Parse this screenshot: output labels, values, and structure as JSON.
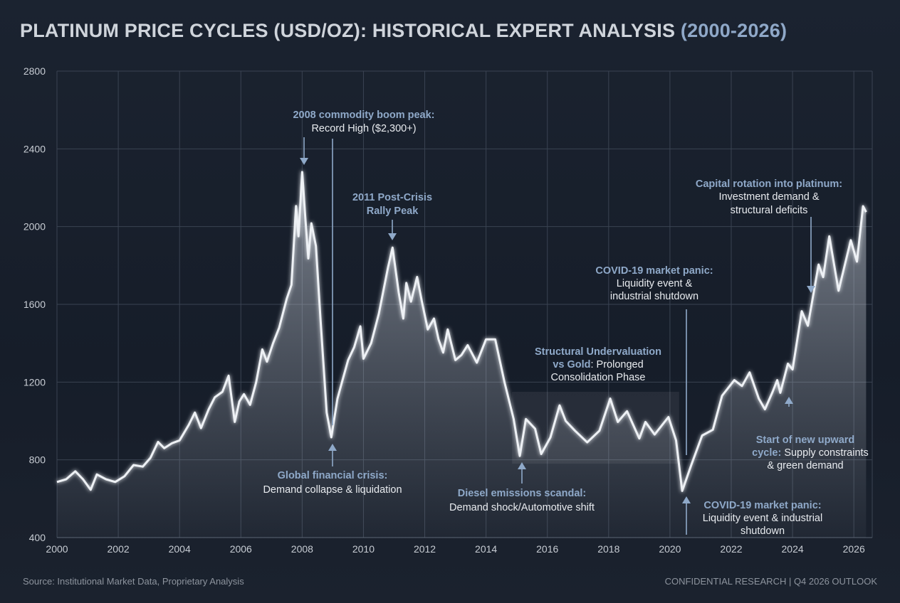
{
  "title": {
    "main": "PLATINUM PRICE CYCLES (USD/OZ): HISTORICAL EXPERT ANALYSIS ",
    "range": "(2000-2026)"
  },
  "footer": {
    "source": "Source: Institutional Market Data, Proprietary Analysis",
    "right": "CONFIDENTIAL RESEARCH | Q4 2026 OUTLOOK"
  },
  "colors": {
    "line": "#eef1f5",
    "accent": "#8fa9c9",
    "grid": "#3a4352",
    "background": "#1a2230"
  },
  "annotations": {
    "peak2008": {
      "title": "2008 commodity boom peak:",
      "text": "Record High ($2,300+)"
    },
    "peak2011": {
      "line1": "2011 Post-Crisis",
      "line2": "Rally Peak"
    },
    "gfc": {
      "title": "Global financial crisis:",
      "text": "Demand collapse & liquidation"
    },
    "diesel": {
      "title": "Diesel emissions scandal:",
      "text": "Demand shock/Automotive shift"
    },
    "structural": {
      "line1": "Structural Undervaluation",
      "line2_bold": "vs Gold",
      "line2_rest": ": Prolonged",
      "line3": "Consolidation Phase"
    },
    "covid_upper": {
      "title": "COVID-19 market panic:",
      "line1": "Liquidity event &",
      "line2": "industrial shutdown"
    },
    "covid_lower": {
      "title": "COVID-19 market panic:",
      "line1": "Liquidity event & industrial",
      "line2": "shutdown"
    },
    "upward": {
      "line1": "Start of new upward",
      "line2_bold": "cycle:",
      "line2_rest": " Supply constraints",
      "line3": "& green demand"
    },
    "capital": {
      "title": "Capital rotation into platinum:",
      "line1": "Investment demand &",
      "line2": "structural deficits"
    }
  },
  "chart_data": {
    "type": "area",
    "title": "PLATINUM PRICE CYCLES (USD/OZ): HISTORICAL EXPERT ANALYSIS (2000-2026)",
    "xlabel": "",
    "ylabel": "USD/oz",
    "xlim": [
      2000,
      2026.6
    ],
    "ylim": [
      400,
      2800
    ],
    "x_ticks": [
      "2000",
      "2002",
      "2004",
      "2006",
      "2008",
      "2010",
      "2012",
      "2014",
      "2016",
      "2018",
      "2020",
      "2022",
      "2024",
      "2026"
    ],
    "y_ticks": [
      "400",
      "800",
      "1200",
      "1600",
      "2000",
      "2400",
      "2800"
    ],
    "grid": true,
    "consolidation_band": {
      "x": [
        2014.85,
        2020.3
      ],
      "y": [
        780,
        1150
      ]
    },
    "series": [
      {
        "name": "Platinum price",
        "points": [
          [
            2000,
            686
          ],
          [
            2000.3,
            700
          ],
          [
            2000.6,
            741
          ],
          [
            2000.85,
            700
          ],
          [
            2001.1,
            646
          ],
          [
            2001.3,
            725
          ],
          [
            2001.6,
            700
          ],
          [
            2001.9,
            686
          ],
          [
            2002.2,
            715
          ],
          [
            2002.5,
            773
          ],
          [
            2002.8,
            765
          ],
          [
            2003.05,
            810
          ],
          [
            2003.3,
            892
          ],
          [
            2003.5,
            860
          ],
          [
            2003.75,
            885
          ],
          [
            2004.0,
            900
          ],
          [
            2004.3,
            980
          ],
          [
            2004.5,
            1043
          ],
          [
            2004.7,
            963
          ],
          [
            2004.95,
            1060
          ],
          [
            2005.15,
            1122
          ],
          [
            2005.4,
            1150
          ],
          [
            2005.6,
            1233
          ],
          [
            2005.8,
            995
          ],
          [
            2005.95,
            1100
          ],
          [
            2006.1,
            1138
          ],
          [
            2006.3,
            1083
          ],
          [
            2006.5,
            1200
          ],
          [
            2006.7,
            1368
          ],
          [
            2006.85,
            1305
          ],
          [
            2007.05,
            1400
          ],
          [
            2007.25,
            1480
          ],
          [
            2007.5,
            1630
          ],
          [
            2007.65,
            1700
          ],
          [
            2007.8,
            2106
          ],
          [
            2007.88,
            1950
          ],
          [
            2008.0,
            2281
          ],
          [
            2008.1,
            2050
          ],
          [
            2008.2,
            1836
          ],
          [
            2008.3,
            2017
          ],
          [
            2008.45,
            1900
          ],
          [
            2008.6,
            1519
          ],
          [
            2008.8,
            1043
          ],
          [
            2008.95,
            916
          ],
          [
            2009.15,
            1114
          ],
          [
            2009.3,
            1200
          ],
          [
            2009.5,
            1313
          ],
          [
            2009.7,
            1380
          ],
          [
            2009.9,
            1487
          ],
          [
            2010.0,
            1320
          ],
          [
            2010.25,
            1400
          ],
          [
            2010.5,
            1551
          ],
          [
            2010.8,
            1789
          ],
          [
            2010.95,
            1892
          ],
          [
            2011.15,
            1660
          ],
          [
            2011.3,
            1527
          ],
          [
            2011.4,
            1710
          ],
          [
            2011.55,
            1614
          ],
          [
            2011.75,
            1741
          ],
          [
            2011.9,
            1620
          ],
          [
            2012.1,
            1471
          ],
          [
            2012.3,
            1527
          ],
          [
            2012.45,
            1420
          ],
          [
            2012.6,
            1352
          ],
          [
            2012.75,
            1471
          ],
          [
            2013.0,
            1313
          ],
          [
            2013.2,
            1340
          ],
          [
            2013.4,
            1390
          ],
          [
            2013.7,
            1300
          ],
          [
            2014.0,
            1420
          ],
          [
            2014.3,
            1420
          ],
          [
            2014.6,
            1200
          ],
          [
            2014.9,
            1010
          ],
          [
            2015.1,
            820
          ],
          [
            2015.3,
            1010
          ],
          [
            2015.6,
            960
          ],
          [
            2015.8,
            830
          ],
          [
            2016.1,
            915
          ],
          [
            2016.4,
            1080
          ],
          [
            2016.6,
            1000
          ],
          [
            2016.9,
            950
          ],
          [
            2017.3,
            890
          ],
          [
            2017.7,
            950
          ],
          [
            2018.05,
            1115
          ],
          [
            2018.3,
            995
          ],
          [
            2018.6,
            1050
          ],
          [
            2019.0,
            910
          ],
          [
            2019.2,
            995
          ],
          [
            2019.5,
            930
          ],
          [
            2019.95,
            1020
          ],
          [
            2020.2,
            900
          ],
          [
            2020.4,
            640
          ],
          [
            2020.7,
            775
          ],
          [
            2021.05,
            925
          ],
          [
            2021.4,
            955
          ],
          [
            2021.7,
            1130
          ],
          [
            2022.1,
            1210
          ],
          [
            2022.35,
            1180
          ],
          [
            2022.6,
            1250
          ],
          [
            2022.9,
            1115
          ],
          [
            2023.1,
            1060
          ],
          [
            2023.35,
            1150
          ],
          [
            2023.5,
            1210
          ],
          [
            2023.6,
            1145
          ],
          [
            2023.85,
            1295
          ],
          [
            2024.0,
            1265
          ],
          [
            2024.3,
            1565
          ],
          [
            2024.5,
            1490
          ],
          [
            2024.85,
            1805
          ],
          [
            2025.0,
            1740
          ],
          [
            2025.2,
            1950
          ],
          [
            2025.5,
            1670
          ],
          [
            2025.9,
            1930
          ],
          [
            2026.1,
            1820
          ],
          [
            2026.3,
            2105
          ],
          [
            2026.4,
            2075
          ]
        ]
      }
    ]
  }
}
